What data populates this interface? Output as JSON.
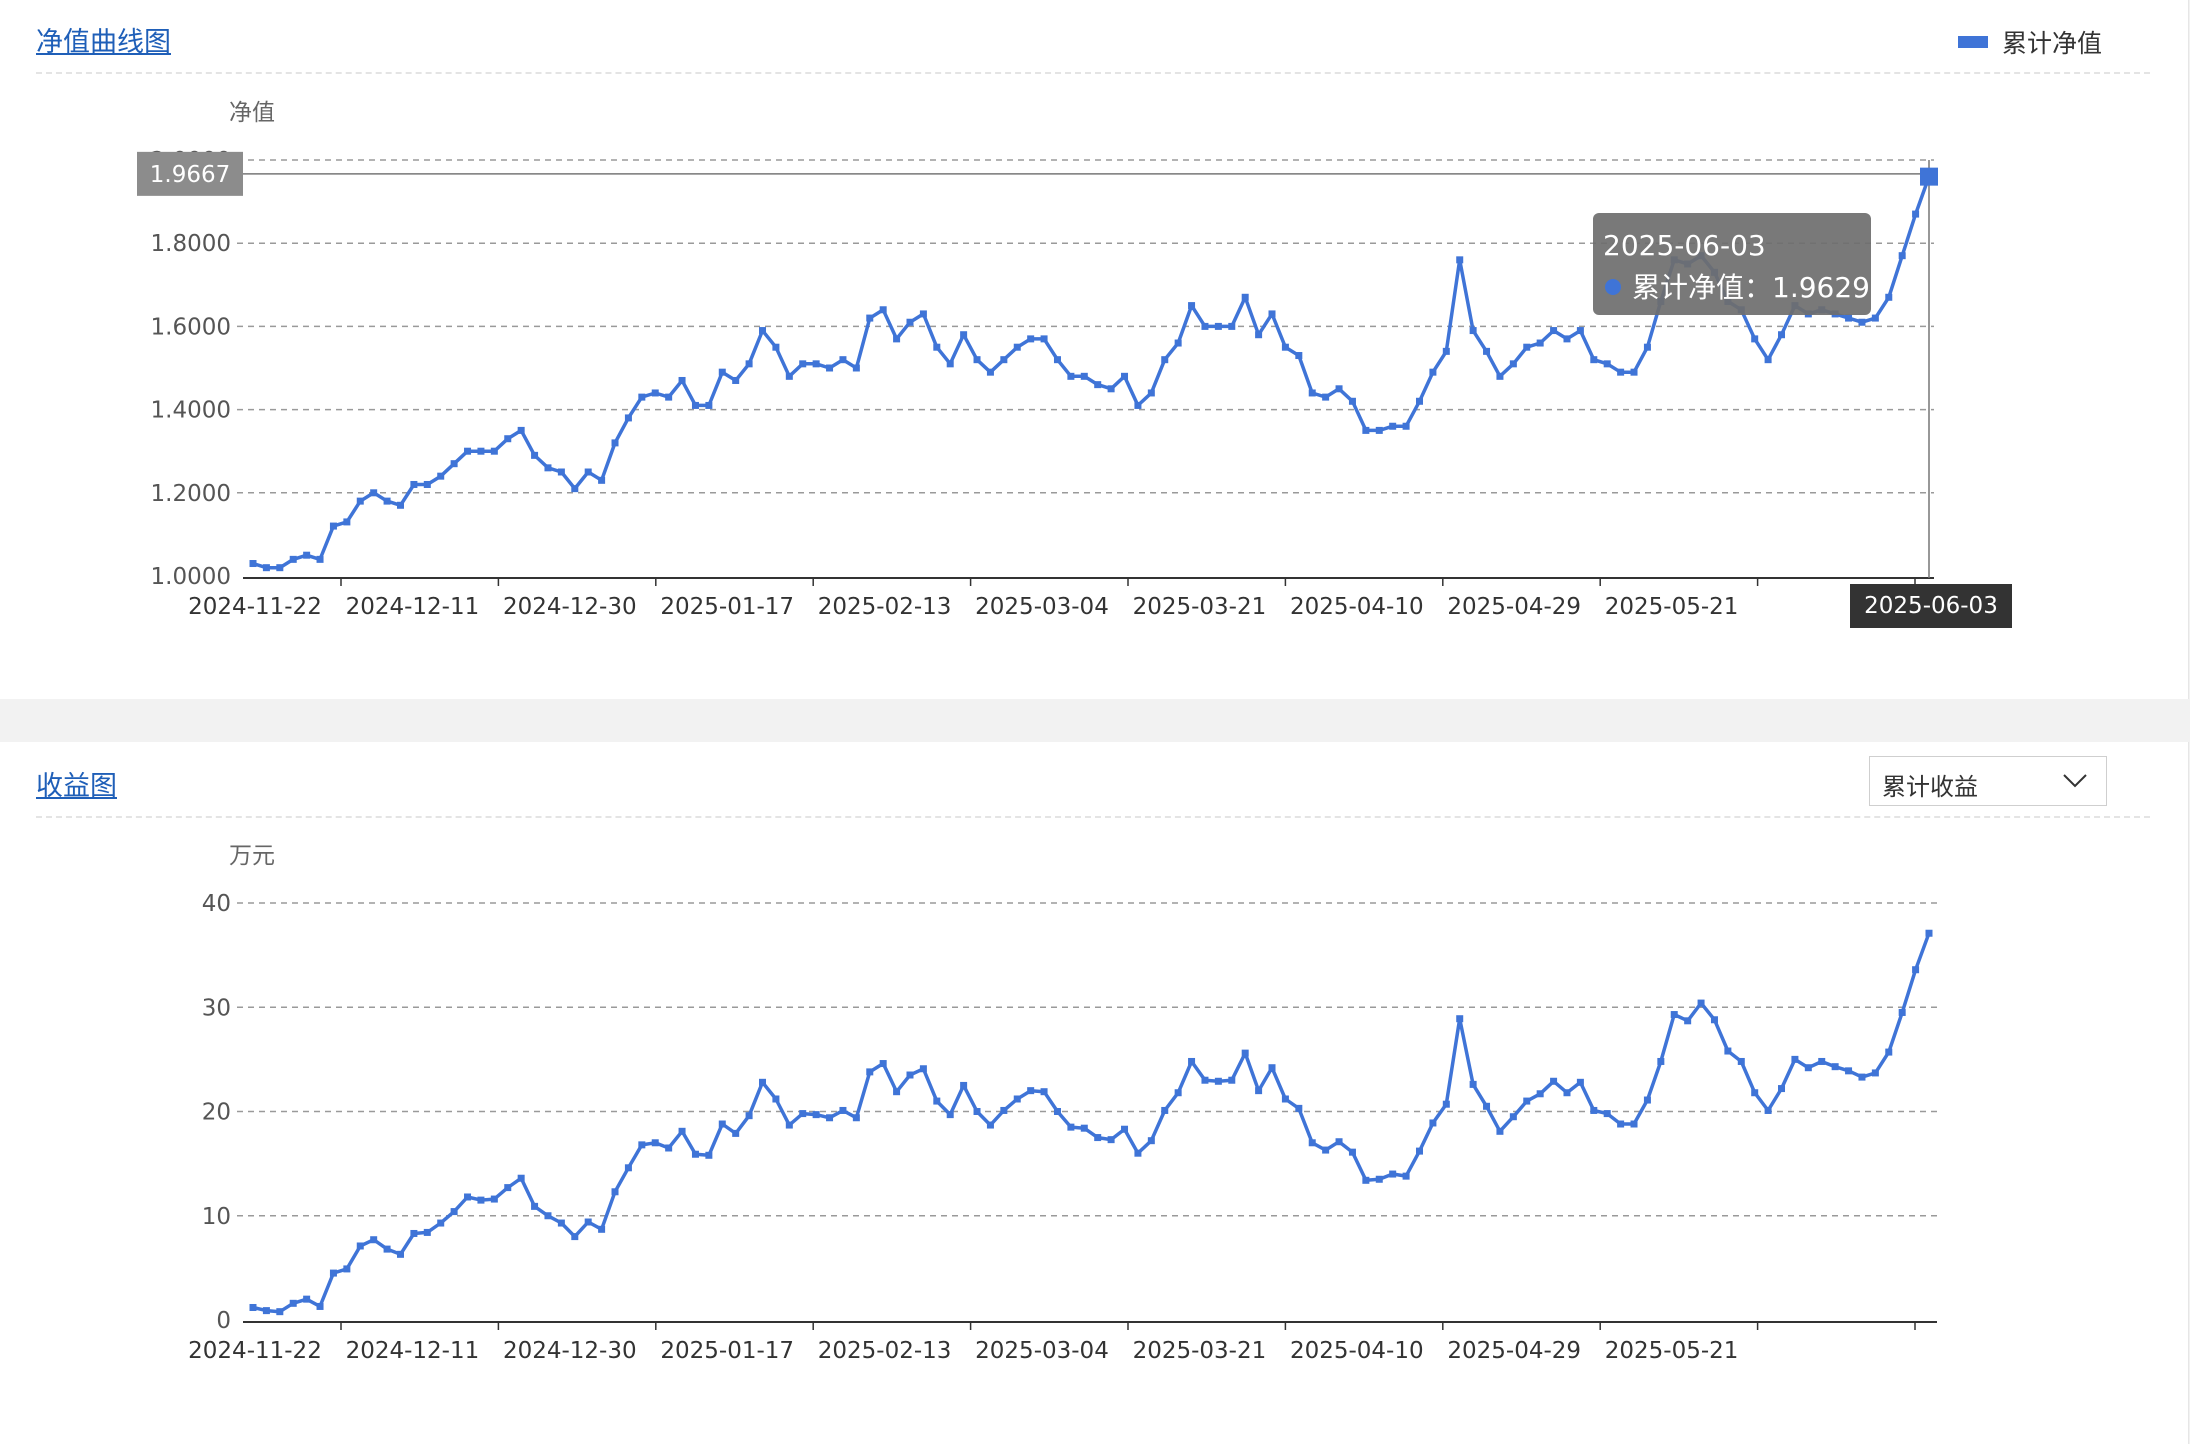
{
  "nav_panel": {
    "title": "净值曲线图",
    "legend_label": "累计净值",
    "axis_pointer_value": "1.9667",
    "axis_pointer_date": "2025-06-03",
    "tooltip": {
      "date": "2025-06-03",
      "series": "累计净值",
      "value": "1.9629"
    }
  },
  "profit_panel": {
    "title": "收益图",
    "select_value": "累计收益"
  },
  "colors": {
    "line": "#3f74d7",
    "title": "#1f5fb8"
  },
  "chart_data": [
    {
      "type": "line",
      "title": "净值曲线图",
      "ylabel": "净值",
      "ylim": [
        1.0,
        2.0
      ],
      "yticks": [
        "1.0000",
        "1.2000",
        "1.4000",
        "1.6000",
        "1.8000",
        "2.0000"
      ],
      "xticks": [
        "2024-11-22",
        "2024-12-11",
        "2024-12-30",
        "2025-01-17",
        "2025-02-13",
        "2025-03-04",
        "2025-03-21",
        "2025-04-10",
        "2025-04-29",
        "2025-05-21"
      ],
      "grid": true,
      "legend": "top-right",
      "series": [
        {
          "name": "累计净值",
          "values": [
            1.03,
            1.02,
            1.02,
            1.04,
            1.05,
            1.04,
            1.12,
            1.13,
            1.18,
            1.2,
            1.18,
            1.17,
            1.22,
            1.22,
            1.24,
            1.27,
            1.3,
            1.3,
            1.3,
            1.33,
            1.35,
            1.29,
            1.26,
            1.25,
            1.21,
            1.25,
            1.23,
            1.32,
            1.38,
            1.43,
            1.44,
            1.43,
            1.47,
            1.41,
            1.41,
            1.49,
            1.47,
            1.51,
            1.59,
            1.55,
            1.48,
            1.51,
            1.51,
            1.5,
            1.52,
            1.5,
            1.62,
            1.64,
            1.57,
            1.61,
            1.63,
            1.55,
            1.51,
            1.58,
            1.52,
            1.49,
            1.52,
            1.55,
            1.57,
            1.57,
            1.52,
            1.48,
            1.48,
            1.46,
            1.45,
            1.48,
            1.41,
            1.44,
            1.52,
            1.56,
            1.65,
            1.6,
            1.6,
            1.6,
            1.67,
            1.58,
            1.63,
            1.55,
            1.53,
            1.44,
            1.43,
            1.45,
            1.42,
            1.35,
            1.35,
            1.36,
            1.36,
            1.42,
            1.49,
            1.54,
            1.76,
            1.59,
            1.54,
            1.48,
            1.51,
            1.55,
            1.56,
            1.59,
            1.57,
            1.59,
            1.52,
            1.51,
            1.49,
            1.49,
            1.55,
            1.66,
            1.76,
            1.75,
            1.77,
            1.73,
            1.66,
            1.64,
            1.57,
            1.52,
            1.58,
            1.65,
            1.63,
            1.64,
            1.63,
            1.62,
            1.61,
            1.62,
            1.67,
            1.77,
            1.87,
            1.96
          ]
        }
      ]
    },
    {
      "type": "line",
      "title": "收益图",
      "ylabel": "万元",
      "ylim": [
        0,
        40
      ],
      "yticks": [
        "0",
        "10",
        "20",
        "30",
        "40"
      ],
      "xticks": [
        "2024-11-22",
        "2024-12-11",
        "2024-12-30",
        "2025-01-17",
        "2025-02-13",
        "2025-03-04",
        "2025-03-21",
        "2025-04-10",
        "2025-04-29",
        "2025-05-21"
      ],
      "grid": true,
      "series": [
        {
          "name": "累计收益",
          "values": [
            1.2,
            0.9,
            0.8,
            1.6,
            2.0,
            1.3,
            4.5,
            4.9,
            7.1,
            7.7,
            6.8,
            6.3,
            8.3,
            8.4,
            9.3,
            10.4,
            11.8,
            11.5,
            11.6,
            12.7,
            13.6,
            10.9,
            10.0,
            9.3,
            8.0,
            9.4,
            8.7,
            12.3,
            14.6,
            16.8,
            17.0,
            16.5,
            18.1,
            15.9,
            15.8,
            18.8,
            17.9,
            19.6,
            22.8,
            21.2,
            18.7,
            19.8,
            19.7,
            19.4,
            20.1,
            19.4,
            23.8,
            24.6,
            21.9,
            23.5,
            24.1,
            21.0,
            19.7,
            22.5,
            20.0,
            18.7,
            20.1,
            21.2,
            22.0,
            21.9,
            20.0,
            18.5,
            18.4,
            17.5,
            17.3,
            18.3,
            16.0,
            17.2,
            20.1,
            21.8,
            24.8,
            23.0,
            22.9,
            23.0,
            25.6,
            22.0,
            24.2,
            21.2,
            20.3,
            17.0,
            16.3,
            17.1,
            16.1,
            13.4,
            13.5,
            14.0,
            13.8,
            16.2,
            18.9,
            20.7,
            28.9,
            22.6,
            20.5,
            18.1,
            19.5,
            21.0,
            21.7,
            22.9,
            21.8,
            22.8,
            20.1,
            19.8,
            18.8,
            18.8,
            21.1,
            24.8,
            29.3,
            28.7,
            30.4,
            28.8,
            25.8,
            24.8,
            21.8,
            20.1,
            22.2,
            25.0,
            24.2,
            24.8,
            24.3,
            23.9,
            23.3,
            23.7,
            25.7,
            29.5,
            33.6,
            37.1
          ]
        }
      ]
    }
  ]
}
